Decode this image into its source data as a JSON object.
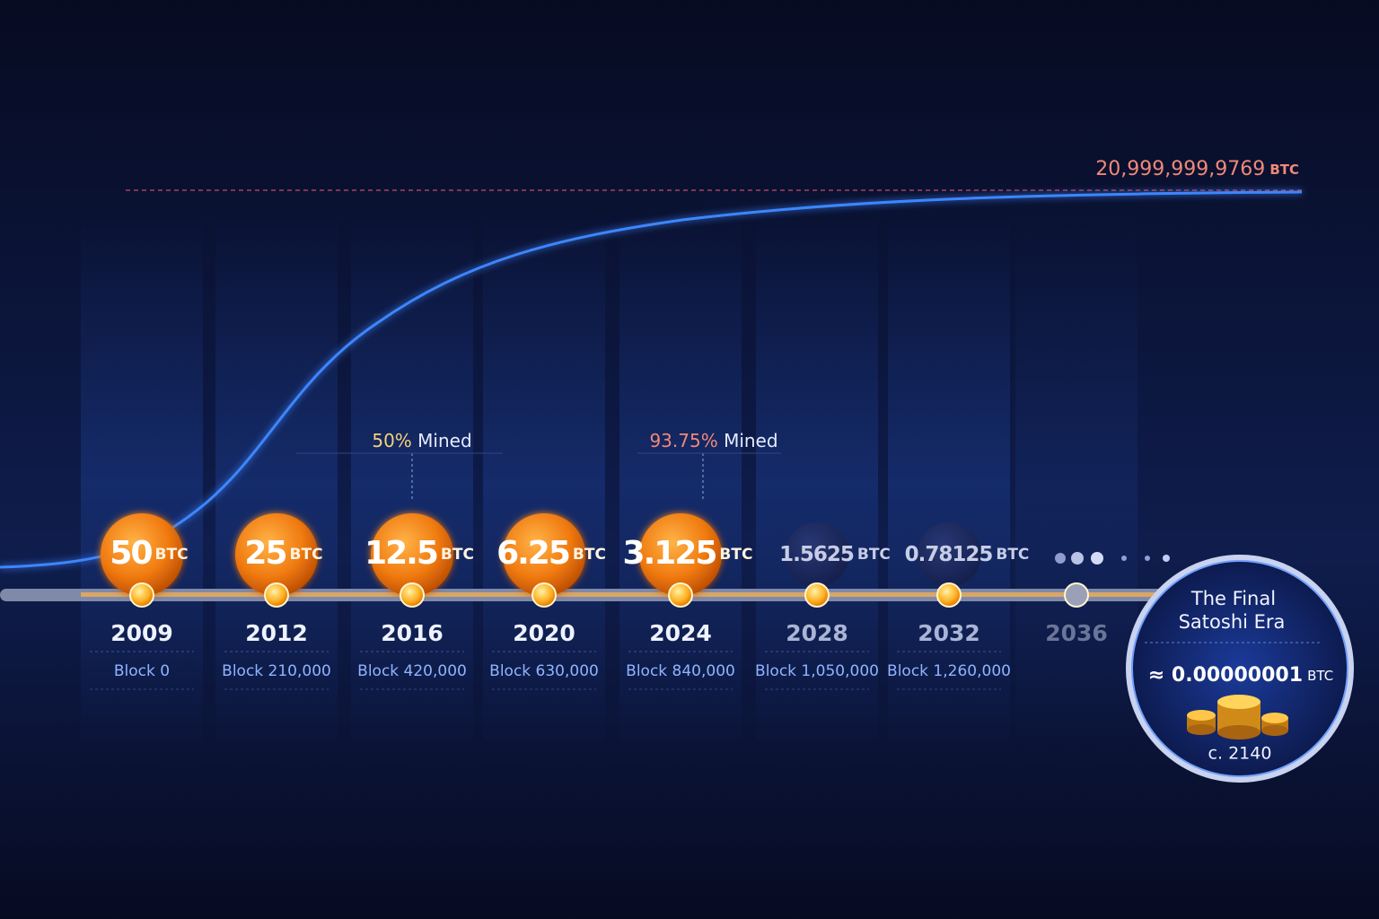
{
  "supply_cap": {
    "value": "20,999,999,9769",
    "unit": "BTC"
  },
  "milestones": [
    {
      "percent": "50%",
      "label": "Mined"
    },
    {
      "percent": "93.75%",
      "label": "Mined"
    }
  ],
  "eras": [
    {
      "reward": "50",
      "unit": "BTC",
      "year": "2009",
      "block": "Block 0"
    },
    {
      "reward": "25",
      "unit": "BTC",
      "year": "2012",
      "block": "Block 210,000"
    },
    {
      "reward": "12.5",
      "unit": "BTC",
      "year": "2016",
      "block": "Block 420,000"
    },
    {
      "reward": "6.25",
      "unit": "BTC",
      "year": "2020",
      "block": "Block 630,000"
    },
    {
      "reward": "3.125",
      "unit": "BTC",
      "year": "2024",
      "block": "Block 840,000"
    },
    {
      "reward": "1.5625",
      "unit": "BTC",
      "year": "2028",
      "block": "Block 1,050,000"
    },
    {
      "reward": "0.78125",
      "unit": "BTC",
      "year": "2032",
      "block": "Block 1,260,000"
    },
    {
      "year": "2036"
    }
  ],
  "final": {
    "title_lines": [
      "The Final",
      "Satoshi Era"
    ],
    "reward": "≈ 0.00000001",
    "unit": "BTC",
    "year": "c. 2140"
  }
}
